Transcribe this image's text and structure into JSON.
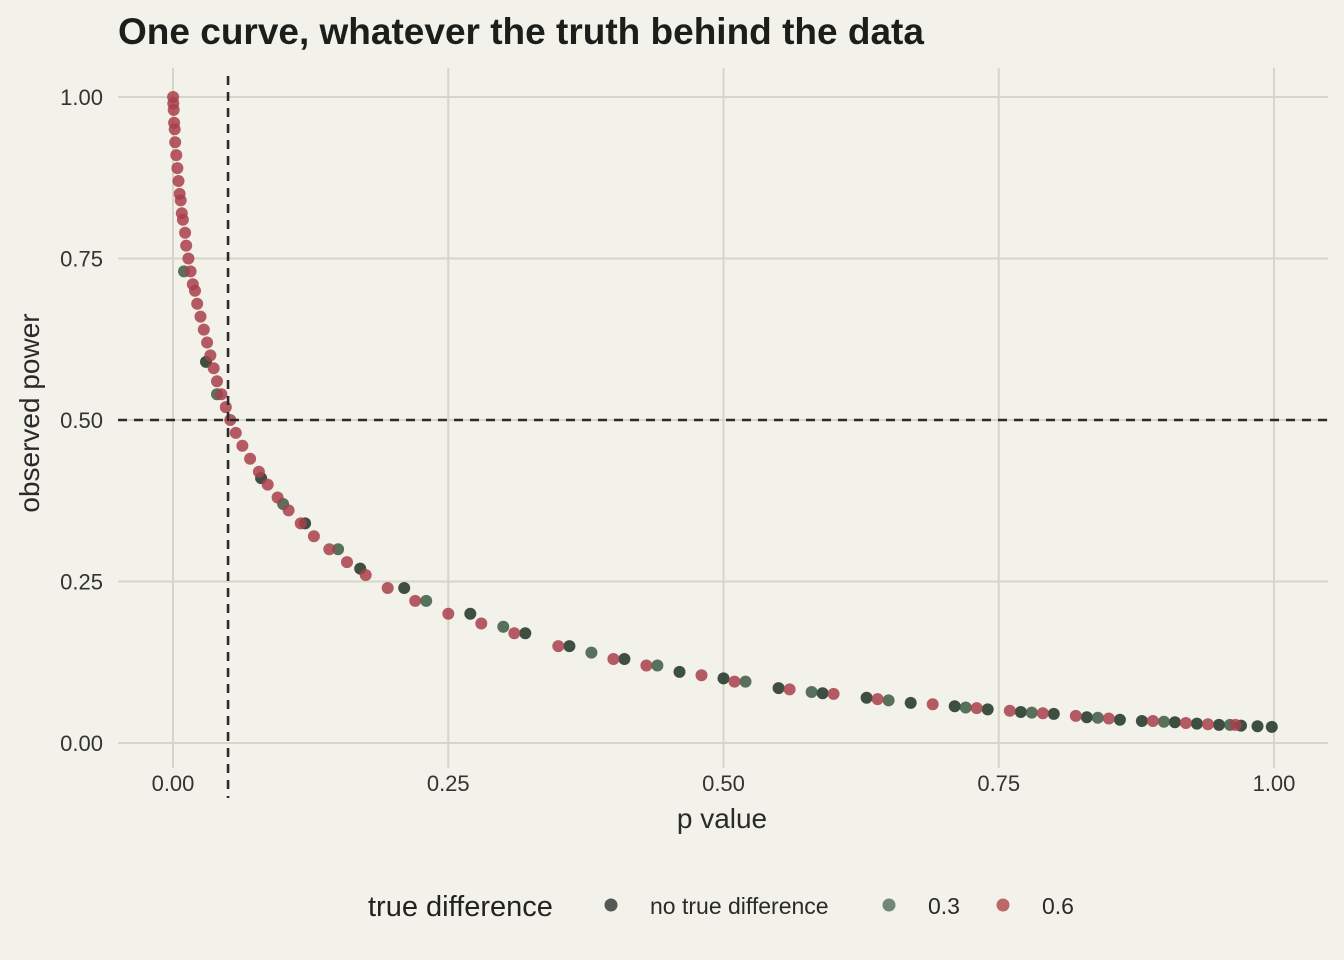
{
  "chart_data": {
    "type": "scatter",
    "title": "One curve, whatever the truth behind the data",
    "xlabel": "p value",
    "ylabel": "observed power",
    "xlim": [
      -0.05,
      1.05
    ],
    "ylim": [
      -0.0,
      1.0
    ],
    "x_ticks": [
      0,
      0.25,
      0.5,
      0.75,
      1.0
    ],
    "x_tick_labels": [
      "0.00",
      "0.25",
      "0.50",
      "0.75",
      "1.00"
    ],
    "y_ticks": [
      0,
      0.25,
      0.5,
      0.75,
      1.0
    ],
    "y_tick_labels": [
      "0.00",
      "0.25",
      "0.50",
      "0.75",
      "1.00"
    ],
    "grid": true,
    "reference_lines": {
      "vertical_x": 0.05,
      "horizontal_y": 0.5
    },
    "legend": {
      "title": "true difference",
      "position": "bottom",
      "entries": [
        {
          "label": "no true difference",
          "color": "#2d332f"
        },
        {
          "label": "0.3",
          "color": "#4f6e59"
        },
        {
          "label": "0.6",
          "color": "#b0454a"
        }
      ]
    },
    "series": [
      {
        "name": "no true difference",
        "color": "#1f3325",
        "points": [
          [
            0.03,
            0.59
          ],
          [
            0.08,
            0.41
          ],
          [
            0.12,
            0.34
          ],
          [
            0.17,
            0.27
          ],
          [
            0.21,
            0.24
          ],
          [
            0.27,
            0.2
          ],
          [
            0.32,
            0.17
          ],
          [
            0.36,
            0.15
          ],
          [
            0.41,
            0.13
          ],
          [
            0.46,
            0.11
          ],
          [
            0.5,
            0.1
          ],
          [
            0.55,
            0.085
          ],
          [
            0.59,
            0.077
          ],
          [
            0.63,
            0.07
          ],
          [
            0.67,
            0.062
          ],
          [
            0.71,
            0.057
          ],
          [
            0.74,
            0.052
          ],
          [
            0.77,
            0.048
          ],
          [
            0.8,
            0.045
          ],
          [
            0.83,
            0.04
          ],
          [
            0.86,
            0.036
          ],
          [
            0.88,
            0.034
          ],
          [
            0.91,
            0.032
          ],
          [
            0.93,
            0.03
          ],
          [
            0.95,
            0.028
          ],
          [
            0.97,
            0.027
          ],
          [
            0.985,
            0.026
          ],
          [
            0.998,
            0.025
          ]
        ]
      },
      {
        "name": "0.3",
        "color": "#3c5a43",
        "points": [
          [
            0.01,
            0.73
          ],
          [
            0.04,
            0.54
          ],
          [
            0.1,
            0.37
          ],
          [
            0.15,
            0.3
          ],
          [
            0.23,
            0.22
          ],
          [
            0.3,
            0.18
          ],
          [
            0.38,
            0.14
          ],
          [
            0.44,
            0.12
          ],
          [
            0.52,
            0.095
          ],
          [
            0.58,
            0.079
          ],
          [
            0.65,
            0.066
          ],
          [
            0.72,
            0.055
          ],
          [
            0.78,
            0.047
          ],
          [
            0.84,
            0.039
          ],
          [
            0.9,
            0.033
          ],
          [
            0.96,
            0.028
          ]
        ]
      },
      {
        "name": "0.6",
        "color": "#a8404a",
        "points": [
          [
            0.0001,
            1.0
          ],
          [
            0.0003,
            0.99
          ],
          [
            0.0006,
            0.98
          ],
          [
            0.001,
            0.96
          ],
          [
            0.0015,
            0.95
          ],
          [
            0.002,
            0.93
          ],
          [
            0.003,
            0.91
          ],
          [
            0.004,
            0.89
          ],
          [
            0.005,
            0.87
          ],
          [
            0.006,
            0.85
          ],
          [
            0.007,
            0.84
          ],
          [
            0.008,
            0.82
          ],
          [
            0.009,
            0.81
          ],
          [
            0.011,
            0.79
          ],
          [
            0.012,
            0.77
          ],
          [
            0.014,
            0.75
          ],
          [
            0.016,
            0.73
          ],
          [
            0.018,
            0.71
          ],
          [
            0.02,
            0.7
          ],
          [
            0.022,
            0.68
          ],
          [
            0.025,
            0.66
          ],
          [
            0.028,
            0.64
          ],
          [
            0.031,
            0.62
          ],
          [
            0.034,
            0.6
          ],
          [
            0.037,
            0.58
          ],
          [
            0.04,
            0.56
          ],
          [
            0.044,
            0.54
          ],
          [
            0.048,
            0.52
          ],
          [
            0.052,
            0.5
          ],
          [
            0.057,
            0.48
          ],
          [
            0.063,
            0.46
          ],
          [
            0.07,
            0.44
          ],
          [
            0.078,
            0.42
          ],
          [
            0.086,
            0.4
          ],
          [
            0.095,
            0.38
          ],
          [
            0.105,
            0.36
          ],
          [
            0.116,
            0.34
          ],
          [
            0.128,
            0.32
          ],
          [
            0.142,
            0.3
          ],
          [
            0.158,
            0.28
          ],
          [
            0.175,
            0.26
          ],
          [
            0.195,
            0.24
          ],
          [
            0.22,
            0.22
          ],
          [
            0.25,
            0.2
          ],
          [
            0.28,
            0.185
          ],
          [
            0.31,
            0.17
          ],
          [
            0.35,
            0.15
          ],
          [
            0.4,
            0.13
          ],
          [
            0.43,
            0.12
          ],
          [
            0.48,
            0.105
          ],
          [
            0.51,
            0.095
          ],
          [
            0.56,
            0.083
          ],
          [
            0.6,
            0.076
          ],
          [
            0.64,
            0.068
          ],
          [
            0.69,
            0.06
          ],
          [
            0.73,
            0.054
          ],
          [
            0.76,
            0.05
          ],
          [
            0.79,
            0.046
          ],
          [
            0.82,
            0.042
          ],
          [
            0.85,
            0.038
          ],
          [
            0.89,
            0.034
          ],
          [
            0.92,
            0.031
          ],
          [
            0.94,
            0.029
          ],
          [
            0.965,
            0.028
          ]
        ]
      }
    ]
  }
}
